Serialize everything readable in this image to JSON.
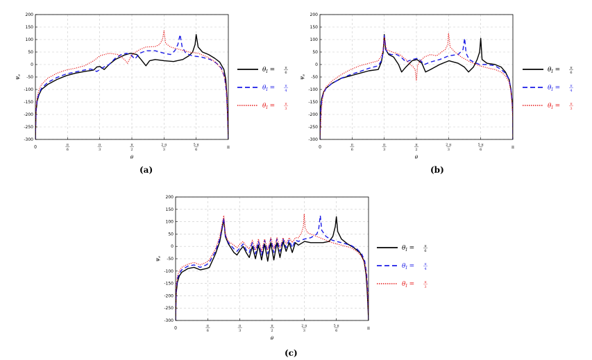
{
  "colors": {
    "solid": "#000000",
    "dashed": "#1a1ae6",
    "dotted": "#e61a1a",
    "grid": "#c8c8c8"
  },
  "legend": [
    {
      "lhs": "θ",
      "sub": "I",
      "num": "π",
      "den": "6",
      "style": "solid"
    },
    {
      "lhs": "θ",
      "sub": "I",
      "num": "π",
      "den": "4",
      "style": "dashed"
    },
    {
      "lhs": "θ",
      "sub": "I",
      "num": "π",
      "den": "3",
      "style": "dotted"
    }
  ],
  "chart_data": [
    {
      "type": "line",
      "panel_label": "(a)",
      "xlabel": "θ",
      "ylabel": "ψ",
      "ylabel_sub": "e",
      "xlim": [
        0,
        3.1416
      ],
      "ylim": [
        -300,
        200
      ],
      "yticks": [
        200,
        150,
        100,
        50,
        0,
        -50,
        -100,
        -150,
        -200,
        -250,
        -300
      ],
      "xticks": [
        {
          "value": 0,
          "num": "0",
          "den": ""
        },
        {
          "value": 0.5236,
          "num": "π",
          "den": "6"
        },
        {
          "value": 1.0472,
          "num": "π",
          "den": "3"
        },
        {
          "value": 1.5708,
          "num": "π",
          "den": "2"
        },
        {
          "value": 2.0944,
          "num": "2 π",
          "den": "3"
        },
        {
          "value": 2.618,
          "num": "5 π",
          "den": "6"
        },
        {
          "value": 3.1416,
          "num": "π",
          "den": ""
        }
      ],
      "series": [
        {
          "style": "solid",
          "x": [
            0.0,
            0.01,
            0.03,
            0.06,
            0.1,
            0.2,
            0.35,
            0.5,
            0.65,
            0.8,
            0.95,
            1.0,
            1.05,
            1.12,
            1.2,
            1.3,
            1.45,
            1.55,
            1.65,
            1.72,
            1.8,
            1.86,
            1.95,
            2.1,
            2.25,
            2.4,
            2.5,
            2.56,
            2.6,
            2.618,
            2.65,
            2.72,
            2.82,
            2.92,
            3.0,
            3.07,
            3.1,
            3.12,
            3.135,
            3.1416
          ],
          "y": [
            -300,
            -190,
            -145,
            -120,
            -100,
            -80,
            -60,
            -45,
            -35,
            -28,
            -22,
            -10,
            -8,
            -20,
            0,
            20,
            38,
            45,
            40,
            20,
            -5,
            15,
            20,
            15,
            12,
            20,
            35,
            50,
            80,
            120,
            70,
            50,
            40,
            25,
            10,
            -20,
            -60,
            -130,
            -250,
            -300
          ]
        },
        {
          "style": "dashed",
          "x": [
            0.0,
            0.01,
            0.03,
            0.06,
            0.1,
            0.2,
            0.35,
            0.5,
            0.65,
            0.8,
            0.9,
            0.95,
            1.0,
            1.1,
            1.2,
            1.3,
            1.4,
            1.48,
            1.55,
            1.62,
            1.7,
            1.8,
            1.95,
            2.1,
            2.2,
            2.27,
            2.32,
            2.356,
            2.39,
            2.45,
            2.55,
            2.7,
            2.85,
            2.95,
            3.03,
            3.08,
            3.11,
            3.13,
            3.14,
            3.1416
          ],
          "y": [
            -300,
            -185,
            -140,
            -115,
            -95,
            -72,
            -52,
            -38,
            -30,
            -22,
            -18,
            -22,
            -28,
            -12,
            0,
            25,
            40,
            45,
            40,
            22,
            45,
            55,
            55,
            45,
            40,
            55,
            80,
            120,
            70,
            45,
            35,
            30,
            20,
            5,
            -15,
            -50,
            -110,
            -200,
            -280,
            -300
          ]
        },
        {
          "style": "dotted",
          "x": [
            0.0,
            0.01,
            0.03,
            0.06,
            0.1,
            0.2,
            0.35,
            0.5,
            0.65,
            0.8,
            0.95,
            1.05,
            1.2,
            1.35,
            1.45,
            1.5,
            1.55,
            1.6,
            1.7,
            1.8,
            1.95,
            2.02,
            2.07,
            2.094,
            2.12,
            2.2,
            2.35,
            2.5,
            2.65,
            2.8,
            2.93,
            3.02,
            3.08,
            3.11,
            3.13,
            3.14,
            3.1416
          ],
          "y": [
            -300,
            -170,
            -130,
            -100,
            -80,
            -55,
            -35,
            -22,
            -15,
            -5,
            15,
            35,
            45,
            40,
            20,
            5,
            30,
            45,
            60,
            70,
            72,
            80,
            100,
            135,
            85,
            70,
            60,
            50,
            45,
            30,
            10,
            -15,
            -50,
            -100,
            -200,
            -280,
            -300
          ]
        }
      ]
    },
    {
      "type": "line",
      "panel_label": "(b)",
      "xlabel": "θ",
      "ylabel": "ψ",
      "ylabel_sub": "e",
      "xlim": [
        0,
        3.1416
      ],
      "ylim": [
        -300,
        200
      ],
      "yticks": [
        200,
        150,
        100,
        50,
        0,
        -50,
        -100,
        -150,
        -200,
        -250,
        -300
      ],
      "xticks": [
        {
          "value": 0,
          "num": "0",
          "den": ""
        },
        {
          "value": 0.5236,
          "num": "π",
          "den": "6"
        },
        {
          "value": 1.0472,
          "num": "π",
          "den": "3"
        },
        {
          "value": 1.5708,
          "num": "π",
          "den": "2"
        },
        {
          "value": 2.0944,
          "num": "2 π",
          "den": "3"
        },
        {
          "value": 2.618,
          "num": "5 π",
          "den": "6"
        },
        {
          "value": 3.1416,
          "num": "π",
          "den": ""
        }
      ],
      "series": [
        {
          "style": "solid",
          "x": [
            0.0,
            0.01,
            0.03,
            0.06,
            0.1,
            0.2,
            0.35,
            0.5,
            0.65,
            0.8,
            0.95,
            1.0,
            1.03,
            1.0472,
            1.07,
            1.12,
            1.2,
            1.28,
            1.33,
            1.4,
            1.5,
            1.58,
            1.66,
            1.72,
            1.8,
            1.95,
            2.1,
            2.25,
            2.35,
            2.42,
            2.5,
            2.56,
            2.6,
            2.618,
            2.64,
            2.72,
            2.85,
            2.95,
            3.02,
            3.08,
            3.11,
            3.13,
            3.14,
            3.1416
          ],
          "y": [
            -300,
            -180,
            -135,
            -110,
            -95,
            -75,
            -55,
            -45,
            -35,
            -25,
            -20,
            10,
            50,
            120,
            60,
            40,
            30,
            0,
            -30,
            -10,
            15,
            20,
            5,
            -30,
            -20,
            0,
            15,
            5,
            -10,
            -30,
            -10,
            20,
            50,
            105,
            20,
            5,
            0,
            -10,
            -30,
            -60,
            -100,
            -150,
            -200,
            -300
          ]
        },
        {
          "style": "dashed",
          "x": [
            0.0,
            0.01,
            0.03,
            0.06,
            0.1,
            0.2,
            0.35,
            0.5,
            0.65,
            0.8,
            0.95,
            1.0,
            1.03,
            1.0472,
            1.08,
            1.15,
            1.25,
            1.32,
            1.4,
            1.5,
            1.6,
            1.7,
            1.8,
            1.95,
            2.1,
            2.25,
            2.33,
            2.356,
            2.38,
            2.43,
            2.5,
            2.6,
            2.72,
            2.85,
            2.95,
            3.02,
            3.08,
            3.11,
            3.13,
            3.14,
            3.1416
          ],
          "y": [
            -300,
            -190,
            -140,
            -115,
            -95,
            -75,
            -55,
            -40,
            -28,
            -15,
            -5,
            15,
            50,
            115,
            55,
            40,
            40,
            30,
            10,
            20,
            25,
            0,
            10,
            20,
            35,
            40,
            60,
            105,
            45,
            20,
            10,
            0,
            0,
            -5,
            -20,
            -35,
            -60,
            -100,
            -150,
            -200,
            -300
          ]
        },
        {
          "style": "dotted",
          "x": [
            0.0,
            0.02,
            0.04,
            0.06,
            0.1,
            0.2,
            0.35,
            0.5,
            0.65,
            0.8,
            0.95,
            1.0,
            1.03,
            1.0472,
            1.08,
            1.18,
            1.3,
            1.4,
            1.47,
            1.52,
            1.55,
            1.57,
            1.59,
            1.62,
            1.7,
            1.8,
            1.9,
            1.98,
            2.04,
            2.08,
            2.094,
            2.12,
            2.2,
            2.3,
            2.45,
            2.6,
            2.75,
            2.85,
            2.95,
            3.02,
            3.08,
            3.11,
            3.13,
            3.14,
            3.1416
          ],
          "y": [
            -300,
            -200,
            -140,
            -110,
            -90,
            -65,
            -40,
            -20,
            -5,
            5,
            15,
            35,
            60,
            110,
            60,
            50,
            40,
            20,
            0,
            -10,
            -20,
            -65,
            -5,
            10,
            30,
            40,
            35,
            50,
            60,
            80,
            125,
            70,
            50,
            30,
            10,
            -5,
            -15,
            -20,
            -30,
            -45,
            -70,
            -110,
            -160,
            -220,
            -300
          ]
        }
      ]
    },
    {
      "type": "line",
      "panel_label": "(c)",
      "xlabel": "θ",
      "ylabel": "ψ",
      "ylabel_sub": "e",
      "xlim": [
        0,
        3.1416
      ],
      "ylim": [
        -300,
        200
      ],
      "yticks": [
        200,
        150,
        100,
        50,
        0,
        -50,
        -100,
        -150,
        -200,
        -250,
        -300
      ],
      "xticks": [
        {
          "value": 0,
          "num": "0",
          "den": ""
        },
        {
          "value": 0.5236,
          "num": "π",
          "den": "6"
        },
        {
          "value": 1.0472,
          "num": "π",
          "den": "3"
        },
        {
          "value": 1.5708,
          "num": "π",
          "den": "2"
        },
        {
          "value": 2.0944,
          "num": "2 π",
          "den": "3"
        },
        {
          "value": 2.618,
          "num": "5 π",
          "den": "6"
        },
        {
          "value": 3.1416,
          "num": "π",
          "den": ""
        }
      ],
      "series": [
        {
          "style": "solid",
          "x": [
            0.0,
            0.01,
            0.03,
            0.06,
            0.1,
            0.2,
            0.3,
            0.4,
            0.5,
            0.55,
            0.65,
            0.72,
            0.785,
            0.81,
            0.86,
            0.95,
            1.0,
            1.05,
            1.1,
            1.15,
            1.2,
            1.25,
            1.3,
            1.35,
            1.4,
            1.45,
            1.5,
            1.55,
            1.6,
            1.65,
            1.7,
            1.75,
            1.8,
            1.85,
            1.9,
            1.95,
            2.0,
            2.1,
            2.2,
            2.3,
            2.4,
            2.5,
            2.56,
            2.6,
            2.618,
            2.64,
            2.7,
            2.8,
            2.9,
            3.0,
            3.07,
            3.1,
            3.12,
            3.135,
            3.1416
          ],
          "y": [
            -300,
            -190,
            -145,
            -120,
            -105,
            -90,
            -85,
            -95,
            -90,
            -85,
            -30,
            20,
            110,
            40,
            10,
            -25,
            -35,
            -15,
            0,
            -25,
            -45,
            0,
            -50,
            5,
            -55,
            10,
            -60,
            15,
            -55,
            15,
            -45,
            20,
            -20,
            15,
            -25,
            15,
            5,
            20,
            15,
            15,
            15,
            20,
            40,
            80,
            120,
            60,
            30,
            10,
            -5,
            -25,
            -60,
            -110,
            -180,
            -260,
            -300
          ]
        },
        {
          "style": "dashed",
          "x": [
            0.0,
            0.01,
            0.03,
            0.06,
            0.1,
            0.2,
            0.3,
            0.4,
            0.5,
            0.55,
            0.65,
            0.72,
            0.785,
            0.81,
            0.86,
            0.95,
            1.0,
            1.05,
            1.1,
            1.15,
            1.2,
            1.25,
            1.3,
            1.35,
            1.4,
            1.45,
            1.5,
            1.55,
            1.6,
            1.65,
            1.7,
            1.75,
            1.8,
            1.85,
            1.9,
            1.95,
            2.0,
            2.1,
            2.2,
            2.3,
            2.33,
            2.356,
            2.38,
            2.45,
            2.55,
            2.7,
            2.85,
            2.95,
            3.03,
            3.08,
            3.11,
            3.13,
            3.14,
            3.1416
          ],
          "y": [
            -300,
            -175,
            -130,
            -110,
            -95,
            -80,
            -75,
            -85,
            -75,
            -65,
            -20,
            30,
            115,
            45,
            15,
            -10,
            -20,
            -5,
            10,
            -15,
            -25,
            15,
            -30,
            20,
            -35,
            25,
            -30,
            30,
            -25,
            30,
            -20,
            30,
            -5,
            25,
            -5,
            25,
            20,
            30,
            35,
            50,
            70,
            125,
            65,
            40,
            25,
            15,
            5,
            -10,
            -30,
            -60,
            -110,
            -190,
            -270,
            -300
          ]
        },
        {
          "style": "dotted",
          "x": [
            0.0,
            0.01,
            0.03,
            0.06,
            0.1,
            0.2,
            0.3,
            0.4,
            0.5,
            0.55,
            0.65,
            0.72,
            0.785,
            0.81,
            0.86,
            0.95,
            1.0,
            1.05,
            1.1,
            1.15,
            1.2,
            1.25,
            1.3,
            1.35,
            1.4,
            1.45,
            1.5,
            1.55,
            1.6,
            1.65,
            1.7,
            1.75,
            1.8,
            1.85,
            1.9,
            1.95,
            2.0,
            2.05,
            2.08,
            2.094,
            2.11,
            2.15,
            2.25,
            2.4,
            2.55,
            2.7,
            2.85,
            2.95,
            3.03,
            3.08,
            3.11,
            3.13,
            3.14,
            3.1416
          ],
          "y": [
            -300,
            -165,
            -120,
            -100,
            -85,
            -72,
            -65,
            -75,
            -65,
            -55,
            -10,
            40,
            125,
            50,
            20,
            5,
            -5,
            10,
            20,
            0,
            -10,
            25,
            -15,
            30,
            -20,
            30,
            -15,
            35,
            -10,
            35,
            -5,
            35,
            10,
            35,
            15,
            35,
            35,
            55,
            80,
            130,
            75,
            55,
            45,
            30,
            15,
            5,
            -5,
            -20,
            -40,
            -70,
            -120,
            -200,
            -280,
            -300
          ]
        }
      ]
    }
  ]
}
